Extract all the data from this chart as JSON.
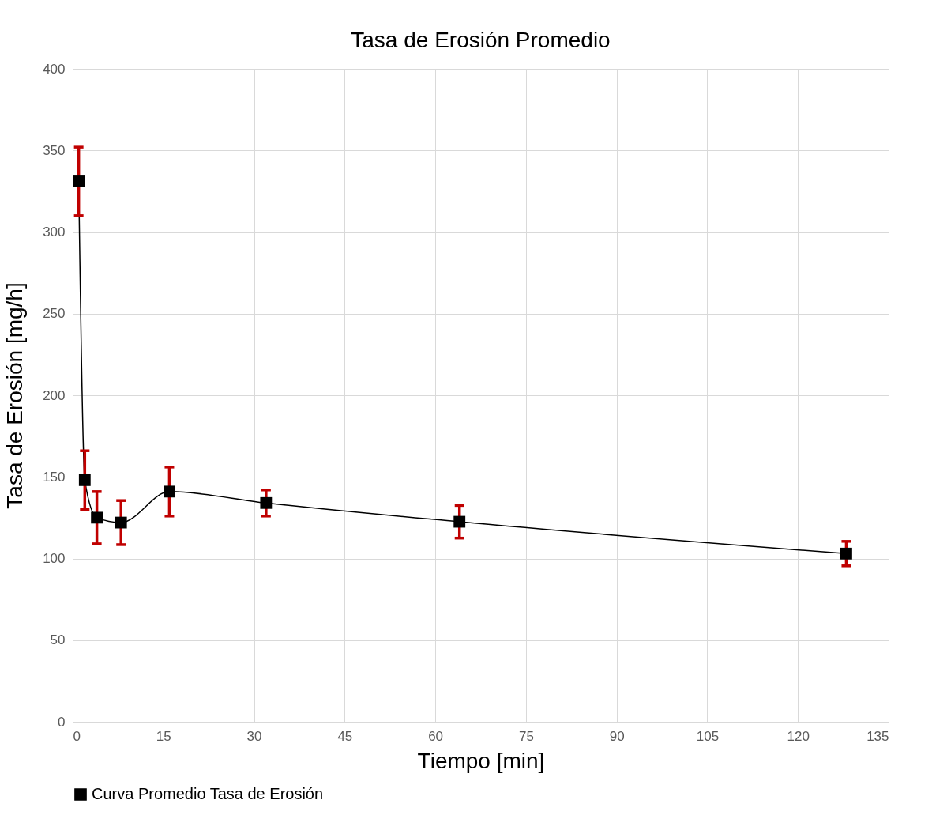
{
  "chart_data": {
    "type": "line",
    "title": "Tasa de Erosión Promedio",
    "xlabel": "Tiempo [min]",
    "ylabel": "Tasa de Erosión  [mg/h]",
    "x": [
      1,
      2,
      4,
      8,
      16,
      32,
      64,
      128
    ],
    "series": [
      {
        "name": "Curva Promedio Tasa de Erosión",
        "color": "#000000",
        "values": [
          331,
          148,
          125,
          122,
          141,
          134,
          122.5,
          103
        ],
        "errors": [
          21,
          18,
          16,
          13.5,
          15,
          8,
          10,
          7.5
        ]
      }
    ],
    "xlim": [
      0,
      135
    ],
    "xticks": [
      0,
      15,
      30,
      45,
      60,
      75,
      90,
      105,
      120,
      135
    ],
    "ylim": [
      0,
      400
    ],
    "yticks": [
      0,
      50,
      100,
      150,
      200,
      250,
      300,
      350,
      400
    ],
    "grid": true,
    "legend": "bottom",
    "marker": "square",
    "line_style": "solid"
  }
}
